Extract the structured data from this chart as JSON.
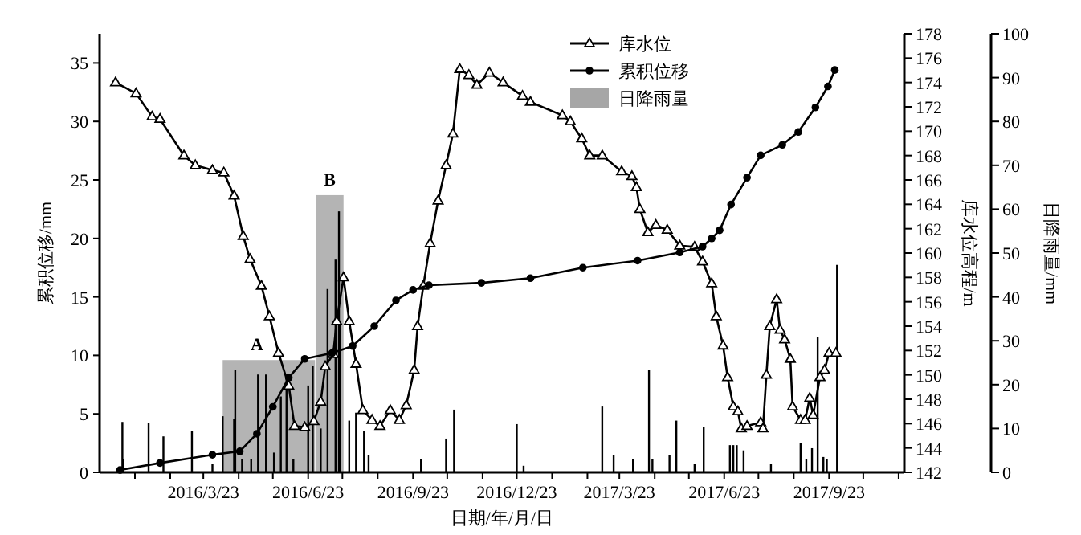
{
  "chart_data": {
    "type": "line",
    "xlabel": "日期/年/月/日",
    "ylabel": "累积位移/mm",
    "y2label": "库水位高程/m",
    "y3label": "日降雨量/mm",
    "xlim": [
      "2015-12-23",
      "2017-11-28"
    ],
    "xticks": [
      {
        "value": "2016-01-23",
        "label": null
      },
      {
        "value": "2016-02-23",
        "label": null
      },
      {
        "value": "2016-03-23",
        "label": "2016/3/23"
      },
      {
        "value": "2016-04-23",
        "label": null
      },
      {
        "value": "2016-05-23",
        "label": null
      },
      {
        "value": "2016-06-23",
        "label": "2016/6/23"
      },
      {
        "value": "2016-07-23",
        "label": null
      },
      {
        "value": "2016-08-23",
        "label": null
      },
      {
        "value": "2016-09-23",
        "label": "2016/9/23"
      },
      {
        "value": "2016-10-23",
        "label": null
      },
      {
        "value": "2016-11-23",
        "label": null
      },
      {
        "value": "2016-12-23",
        "label": "2016/12/23"
      },
      {
        "value": "2017-01-23",
        "label": null
      },
      {
        "value": "2017-02-23",
        "label": null
      },
      {
        "value": "2017-03-23",
        "label": "2017/3/23"
      },
      {
        "value": "2017-04-23",
        "label": null
      },
      {
        "value": "2017-05-23",
        "label": null
      },
      {
        "value": "2017-06-23",
        "label": "2017/6/23"
      },
      {
        "value": "2017-07-23",
        "label": null
      },
      {
        "value": "2017-08-23",
        "label": null
      },
      {
        "value": "2017-09-23",
        "label": "2017/9/23"
      },
      {
        "value": "2017-10-23",
        "label": null
      },
      {
        "value": "2017-11-23",
        "label": null
      }
    ],
    "ylim": [
      0,
      37.5
    ],
    "yticks": [
      0,
      5,
      10,
      15,
      20,
      25,
      30,
      35
    ],
    "y2lim": [
      142,
      178
    ],
    "y2ticks": [
      142,
      144,
      146,
      148,
      150,
      152,
      154,
      156,
      158,
      160,
      162,
      164,
      166,
      168,
      170,
      172,
      174,
      176,
      178
    ],
    "y3lim": [
      0,
      100
    ],
    "y3ticks": [
      0,
      10,
      20,
      30,
      40,
      50,
      60,
      70,
      80,
      90,
      100
    ],
    "legend": "top right",
    "bands": [
      {
        "axis": "x",
        "from": "2016-04-09",
        "to": "2016-06-29",
        "color": "#b4b4b4"
      },
      {
        "axis": "x",
        "from": "2016-06-30",
        "to": "2016-07-24",
        "color": "#b4b4b4"
      }
    ],
    "annotations": [
      {
        "text": "A",
        "x": "2016-05-09",
        "y": 9.6
      },
      {
        "text": "B",
        "x": "2016-07-12",
        "y": 23.7
      }
    ],
    "series": [
      {
        "name": "库水位",
        "axis": "y2",
        "marker": "triangle",
        "color": "#000000",
        "x": [
          "2016-01-06",
          "2016-01-24",
          "2016-02-07",
          "2016-02-14",
          "2016-03-06",
          "2016-03-16",
          "2016-03-31",
          "2016-04-10",
          "2016-04-19",
          "2016-04-27",
          "2016-05-03",
          "2016-05-13",
          "2016-05-20",
          "2016-05-28",
          "2016-06-06",
          "2016-06-11",
          "2016-06-20",
          "2016-06-28",
          "2016-07-04",
          "2016-07-08",
          "2016-07-15",
          "2016-07-18",
          "2016-07-24",
          "2016-07-29",
          "2016-08-04",
          "2016-08-10",
          "2016-08-18",
          "2016-08-25",
          "2016-09-03",
          "2016-09-11",
          "2016-09-17",
          "2016-09-24",
          "2016-09-27",
          "2016-10-02",
          "2016-10-08",
          "2016-10-15",
          "2016-10-22",
          "2016-10-28",
          "2016-11-03",
          "2016-11-11",
          "2016-11-18",
          "2016-11-29",
          "2016-12-11",
          "2016-12-28",
          "2017-01-04",
          "2017-02-01",
          "2017-02-08",
          "2017-02-18",
          "2017-02-25",
          "2017-03-08",
          "2017-03-25",
          "2017-04-03",
          "2017-04-07",
          "2017-04-10",
          "2017-04-17",
          "2017-04-24",
          "2017-05-04",
          "2017-05-15",
          "2017-05-28",
          "2017-06-04",
          "2017-06-12",
          "2017-06-16",
          "2017-06-22",
          "2017-06-26",
          "2017-07-01",
          "2017-07-05",
          "2017-07-08",
          "2017-07-13",
          "2017-07-25",
          "2017-07-27",
          "2017-07-30",
          "2017-08-02",
          "2017-08-08",
          "2017-08-11",
          "2017-08-15",
          "2017-08-20",
          "2017-08-22",
          "2017-08-29",
          "2017-09-02",
          "2017-09-06",
          "2017-09-09",
          "2017-09-15",
          "2017-09-19",
          "2017-09-23",
          "2017-09-29"
        ],
        "values": [
          174.0,
          173.1,
          171.2,
          171.0,
          168.0,
          167.2,
          166.8,
          166.6,
          164.7,
          161.4,
          159.5,
          157.3,
          154.8,
          151.8,
          149.1,
          145.8,
          145.7,
          146.2,
          147.8,
          150.7,
          151.7,
          154.4,
          158.0,
          154.4,
          150.9,
          147.1,
          146.3,
          145.8,
          147.1,
          146.3,
          147.5,
          150.4,
          154.0,
          157.3,
          160.8,
          164.3,
          167.2,
          169.8,
          175.1,
          174.6,
          173.8,
          174.8,
          174.0,
          172.9,
          172.4,
          171.3,
          170.8,
          169.4,
          168.0,
          168.0,
          166.7,
          166.3,
          165.4,
          163.6,
          161.7,
          162.3,
          161.9,
          160.6,
          160.5,
          159.3,
          157.5,
          154.8,
          152.4,
          149.8,
          147.4,
          147.0,
          145.6,
          145.8,
          146.1,
          145.6,
          150.0,
          154.0,
          156.2,
          153.7,
          152.9,
          151.3,
          147.4,
          146.3,
          146.3,
          148.1,
          146.7,
          149.8,
          150.4,
          151.8,
          151.8
        ]
      },
      {
        "name": "累积位移",
        "axis": "y",
        "marker": "circle",
        "color": "#000000",
        "x": [
          "2016-01-10",
          "2016-02-14",
          "2016-03-31",
          "2016-04-24",
          "2016-05-09",
          "2016-05-23",
          "2016-06-06",
          "2016-06-20",
          "2016-07-14",
          "2016-08-01",
          "2016-08-20",
          "2016-09-08",
          "2016-09-23",
          "2016-10-07",
          "2016-11-22",
          "2017-01-04",
          "2017-02-19",
          "2017-04-08",
          "2017-05-15",
          "2017-06-04",
          "2017-06-12",
          "2017-06-19",
          "2017-06-29",
          "2017-07-13",
          "2017-07-25",
          "2017-08-13",
          "2017-08-27",
          "2017-09-11",
          "2017-09-22",
          "2017-09-28"
        ],
        "values": [
          0.2,
          0.8,
          1.5,
          1.8,
          3.3,
          5.6,
          8.1,
          9.7,
          10.2,
          10.8,
          12.5,
          14.7,
          15.6,
          16.0,
          16.2,
          16.6,
          17.5,
          18.1,
          18.8,
          19.3,
          20.0,
          20.7,
          22.9,
          25.2,
          27.1,
          28.0,
          29.1,
          31.2,
          33.0,
          34.4
        ]
      },
      {
        "name": "日降雨量",
        "type": "bar",
        "axis": "y3",
        "color": "#000000",
        "x": [
          "2016-01-12",
          "2016-01-13",
          "2016-02-04",
          "2016-02-17",
          "2016-03-13",
          "2016-03-31",
          "2016-04-09",
          "2016-04-19",
          "2016-04-20",
          "2016-04-26",
          "2016-05-04",
          "2016-05-10",
          "2016-05-17",
          "2016-05-24",
          "2016-05-30",
          "2016-06-04",
          "2016-06-10",
          "2016-06-23",
          "2016-06-27",
          "2016-07-04",
          "2016-07-10",
          "2016-07-17",
          "2016-07-20",
          "2016-07-21",
          "2016-07-29",
          "2016-08-04",
          "2016-08-11",
          "2016-08-15",
          "2016-09-30",
          "2016-10-22",
          "2016-10-29",
          "2016-12-23",
          "2016-12-29",
          "2017-03-08",
          "2017-03-18",
          "2017-04-04",
          "2017-04-18",
          "2017-04-21",
          "2017-05-06",
          "2017-05-12",
          "2017-05-28",
          "2017-06-05",
          "2017-06-28",
          "2017-07-01",
          "2017-07-04",
          "2017-07-10",
          "2017-08-03",
          "2017-08-29",
          "2017-09-03",
          "2017-09-08",
          "2017-09-13",
          "2017-09-18",
          "2017-09-21",
          "2017-09-30"
        ],
        "values": [
          11.5,
          3,
          11.3,
          8.2,
          9.5,
          2,
          12.8,
          12.2,
          23.4,
          3,
          3,
          22.3,
          22.3,
          4.5,
          17.3,
          22.3,
          3,
          19.8,
          24.2,
          10,
          41.8,
          48.5,
          59.5,
          33.8,
          11.8,
          13.6,
          9.5,
          4,
          3,
          7.7,
          14.3,
          11,
          1.5,
          15,
          4,
          3,
          23.4,
          3,
          4,
          11.8,
          2,
          10.4,
          6.2,
          6.2,
          6.2,
          5,
          2,
          6.6,
          3,
          5.5,
          30.8,
          3.5,
          3,
          47.3
        ]
      }
    ]
  }
}
